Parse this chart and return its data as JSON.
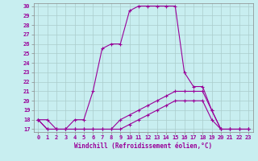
{
  "xlabel": "Windchill (Refroidissement éolien,°C)",
  "bg_color": "#c8eef0",
  "line_color": "#990099",
  "grid_color": "#aacccc",
  "xlim": [
    -0.5,
    23.5
  ],
  "ylim": [
    16.7,
    30.3
  ],
  "xticks": [
    0,
    1,
    2,
    3,
    4,
    5,
    6,
    7,
    8,
    9,
    10,
    11,
    12,
    13,
    14,
    15,
    16,
    17,
    18,
    19,
    20,
    21,
    22,
    23
  ],
  "yticks": [
    17,
    18,
    19,
    20,
    21,
    22,
    23,
    24,
    25,
    26,
    27,
    28,
    29,
    30
  ],
  "line1_x": [
    0,
    1,
    2,
    3,
    4,
    5,
    6,
    7,
    8,
    9,
    10,
    11,
    12,
    13,
    14,
    15,
    16,
    17,
    18,
    19,
    20,
    21,
    22,
    23
  ],
  "line1_y": [
    18,
    18,
    17,
    17,
    18,
    18,
    21,
    25.5,
    26,
    26,
    29.5,
    30,
    30,
    30,
    30,
    30,
    23,
    21.5,
    21.5,
    19,
    17,
    17,
    17,
    17
  ],
  "line2_x": [
    0,
    1,
    2,
    3,
    4,
    5,
    6,
    7,
    8,
    9,
    10,
    11,
    12,
    13,
    14,
    15,
    16,
    17,
    18,
    19,
    20,
    21,
    22,
    23
  ],
  "line2_y": [
    18,
    17,
    17,
    17,
    17,
    17,
    17,
    17,
    17,
    18,
    18.5,
    19,
    19.5,
    20,
    20.5,
    21,
    21,
    21,
    21,
    19,
    17,
    17,
    17,
    17
  ],
  "line3_x": [
    0,
    1,
    2,
    3,
    4,
    5,
    6,
    7,
    8,
    9,
    10,
    11,
    12,
    13,
    14,
    15,
    16,
    17,
    18,
    19,
    20,
    21,
    22,
    23
  ],
  "line3_y": [
    18,
    17,
    17,
    17,
    17,
    17,
    17,
    17,
    17,
    17,
    17.5,
    18,
    18.5,
    19,
    19.5,
    20,
    20,
    20,
    20,
    18,
    17,
    17,
    17,
    17
  ],
  "tick_fontsize": 5,
  "xlabel_fontsize": 5.5,
  "linewidth": 0.8,
  "markersize": 3
}
